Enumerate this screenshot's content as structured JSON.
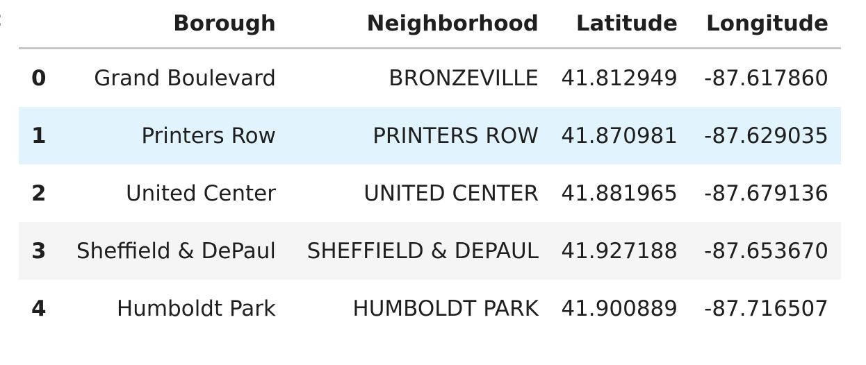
{
  "table": {
    "columns": [
      "",
      "Borough",
      "Neighborhood",
      "Latitude",
      "Longitude"
    ],
    "rows": [
      {
        "index": "0",
        "borough": "Grand Boulevard",
        "neighborhood": "BRONZEVILLE",
        "latitude": "41.812949",
        "longitude": "-87.617860"
      },
      {
        "index": "1",
        "borough": "Printers Row",
        "neighborhood": "PRINTERS ROW",
        "latitude": "41.870981",
        "longitude": "-87.629035"
      },
      {
        "index": "2",
        "borough": "United Center",
        "neighborhood": "UNITED CENTER",
        "latitude": "41.881965",
        "longitude": "-87.679136"
      },
      {
        "index": "3",
        "borough": "Sheffield & DePaul",
        "neighborhood": "SHEFFIELD & DEPAUL",
        "latitude": "41.927188",
        "longitude": "-87.653670"
      },
      {
        "index": "4",
        "borough": "Humboldt Park",
        "neighborhood": "HUMBOLDT PARK",
        "latitude": "41.900889",
        "longitude": "-87.716507"
      }
    ],
    "highlighted_row": "1"
  },
  "colors": {
    "header_rule": "#c6c6c6",
    "striped_row": "#f5f5f5",
    "hover_row": "#e1f4fd"
  }
}
